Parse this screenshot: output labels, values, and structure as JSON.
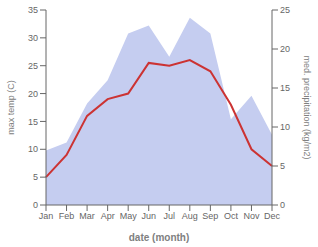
{
  "chart_data": {
    "type": "line",
    "xlabel": "date (month)",
    "ylabel": "max temp (C)",
    "y2label": "med. precipitation (kg/m2)",
    "categories": [
      "Jan",
      "Feb",
      "Mar",
      "Apr",
      "May",
      "Jun",
      "Jul",
      "Aug",
      "Sep",
      "Oct",
      "Nov",
      "Dec"
    ],
    "series": [
      {
        "type": "area",
        "axis": "y2",
        "color": "#c5cdf0",
        "values": [
          7,
          8,
          13,
          16,
          22,
          23,
          19,
          24,
          22,
          11,
          14,
          9
        ]
      },
      {
        "type": "line",
        "color": "#cc3333",
        "values": [
          5,
          9,
          16,
          19,
          20,
          25.5,
          25,
          26,
          24,
          18,
          10,
          7
        ]
      }
    ],
    "ylim": [
      0,
      35
    ],
    "yticks": [
      0,
      5,
      10,
      15,
      20,
      25,
      30,
      35
    ],
    "y2lim": [
      0,
      25
    ],
    "y2ticks": [
      0,
      5,
      10,
      15,
      20,
      25
    ],
    "grid": false
  }
}
